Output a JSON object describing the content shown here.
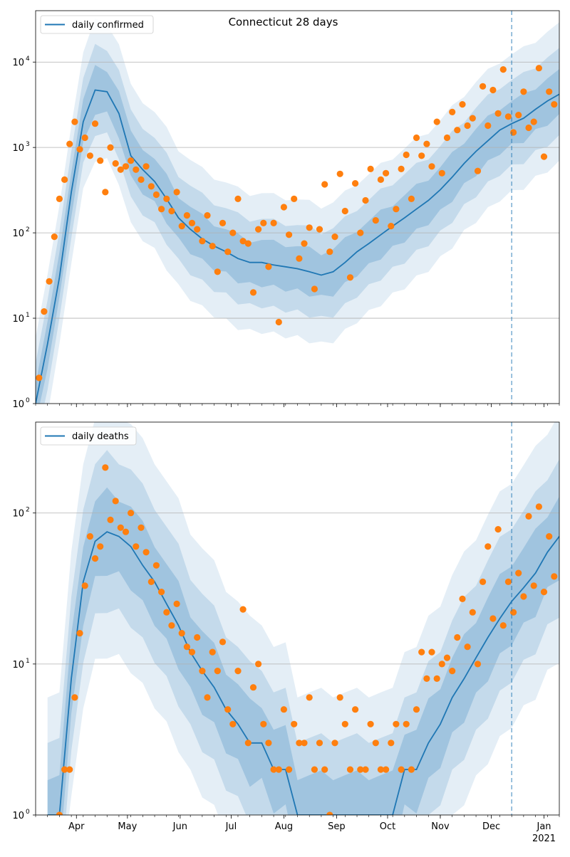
{
  "chart_data": [
    {
      "type": "line",
      "title": "Connecticut 28 days",
      "ylog": true,
      "ylim": [
        1,
        40000
      ],
      "yticks": [
        1,
        10,
        100,
        1000,
        10000
      ],
      "ytick_labels": [
        "10",
        "10",
        "10",
        "10",
        "10"
      ],
      "ytick_exponents": [
        "0",
        "1",
        "2",
        "3",
        "4"
      ],
      "grid": "y",
      "legend": "top-left",
      "vline_date": "2020-12-13",
      "series": [
        {
          "name": "daily confirmed",
          "color": "#1f77b4",
          "x": [
            "2020-03-08",
            "2020-03-15",
            "2020-03-22",
            "2020-03-29",
            "2020-04-05",
            "2020-04-12",
            "2020-04-19",
            "2020-04-26",
            "2020-05-03",
            "2020-05-10",
            "2020-05-17",
            "2020-05-24",
            "2020-05-31",
            "2020-06-07",
            "2020-06-14",
            "2020-06-21",
            "2020-06-28",
            "2020-07-05",
            "2020-07-12",
            "2020-07-19",
            "2020-07-26",
            "2020-08-02",
            "2020-08-09",
            "2020-08-16",
            "2020-08-23",
            "2020-08-30",
            "2020-09-06",
            "2020-09-13",
            "2020-09-20",
            "2020-09-27",
            "2020-10-04",
            "2020-10-11",
            "2020-10-18",
            "2020-10-25",
            "2020-11-01",
            "2020-11-08",
            "2020-11-15",
            "2020-11-22",
            "2020-11-29",
            "2020-12-06",
            "2020-12-13",
            "2020-12-20",
            "2020-12-27",
            "2021-01-03",
            "2021-01-10"
          ],
          "y": [
            1,
            5,
            30,
            300,
            2000,
            4700,
            4500,
            2500,
            800,
            550,
            400,
            250,
            150,
            110,
            85,
            70,
            60,
            50,
            45,
            45,
            42,
            40,
            38,
            35,
            32,
            35,
            45,
            60,
            75,
            95,
            120,
            150,
            190,
            240,
            320,
            450,
            650,
            900,
            1200,
            1600,
            1900,
            2200,
            2800,
            3500,
            4200
          ]
        }
      ],
      "points": {
        "color": "#ff7f0e",
        "x": [
          "2020-03-10",
          "2020-03-13",
          "2020-03-16",
          "2020-03-19",
          "2020-03-22",
          "2020-03-25",
          "2020-03-28",
          "2020-03-31",
          "2020-04-03",
          "2020-04-06",
          "2020-04-09",
          "2020-04-12",
          "2020-04-15",
          "2020-04-18",
          "2020-04-21",
          "2020-04-24",
          "2020-04-27",
          "2020-04-30",
          "2020-05-03",
          "2020-05-06",
          "2020-05-09",
          "2020-05-12",
          "2020-05-15",
          "2020-05-18",
          "2020-05-21",
          "2020-05-24",
          "2020-05-27",
          "2020-05-30",
          "2020-06-02",
          "2020-06-05",
          "2020-06-08",
          "2020-06-11",
          "2020-06-14",
          "2020-06-17",
          "2020-06-20",
          "2020-06-23",
          "2020-06-26",
          "2020-06-29",
          "2020-07-02",
          "2020-07-05",
          "2020-07-08",
          "2020-07-11",
          "2020-07-14",
          "2020-07-17",
          "2020-07-20",
          "2020-07-23",
          "2020-07-26",
          "2020-07-29",
          "2020-08-01",
          "2020-08-04",
          "2020-08-07",
          "2020-08-10",
          "2020-08-13",
          "2020-08-16",
          "2020-08-19",
          "2020-08-22",
          "2020-08-25",
          "2020-08-28",
          "2020-08-31",
          "2020-09-03",
          "2020-09-06",
          "2020-09-09",
          "2020-09-12",
          "2020-09-15",
          "2020-09-18",
          "2020-09-21",
          "2020-09-24",
          "2020-09-27",
          "2020-09-30",
          "2020-10-03",
          "2020-10-06",
          "2020-10-09",
          "2020-10-12",
          "2020-10-15",
          "2020-10-18",
          "2020-10-21",
          "2020-10-24",
          "2020-10-27",
          "2020-10-30",
          "2020-11-02",
          "2020-11-05",
          "2020-11-08",
          "2020-11-11",
          "2020-11-14",
          "2020-11-17",
          "2020-11-20",
          "2020-11-23",
          "2020-11-26",
          "2020-11-29",
          "2020-12-02",
          "2020-12-05",
          "2020-12-08",
          "2020-12-11",
          "2020-12-14",
          "2020-12-17",
          "2020-12-20",
          "2020-12-23",
          "2020-12-26",
          "2020-12-29",
          "2021-01-01",
          "2021-01-04",
          "2021-01-07"
        ],
        "y": [
          2,
          12,
          27,
          90,
          250,
          420,
          1100,
          2000,
          950,
          1300,
          800,
          1900,
          700,
          300,
          1000,
          650,
          550,
          600,
          700,
          550,
          420,
          600,
          350,
          280,
          190,
          250,
          180,
          300,
          120,
          160,
          130,
          110,
          80,
          160,
          70,
          35,
          130,
          60,
          100,
          250,
          80,
          75,
          20,
          110,
          130,
          40,
          130,
          9,
          200,
          95,
          250,
          50,
          75,
          115,
          22,
          110,
          370,
          60,
          90,
          490,
          180,
          30,
          380,
          100,
          240,
          560,
          140,
          420,
          500,
          120,
          190,
          560,
          820,
          250,
          1300,
          800,
          1100,
          600,
          2000,
          500,
          1300,
          2600,
          1600,
          3200,
          1800,
          2200,
          530,
          5200,
          1800,
          4700,
          2500,
          8200,
          2300,
          1500,
          2400,
          4500,
          1700,
          2000,
          8500,
          780,
          4500,
          3200
        ]
      }
    },
    {
      "type": "line",
      "title": "",
      "ylog": true,
      "ylim": [
        1,
        400
      ],
      "yticks": [
        1,
        10,
        100
      ],
      "ytick_labels": [
        "10",
        "10",
        "10"
      ],
      "ytick_exponents": [
        "0",
        "1",
        "2"
      ],
      "grid": "y",
      "legend": "top-left",
      "vline_date": "2020-12-13",
      "x_ticks": [
        "2020-04-01",
        "2020-05-01",
        "2020-06-01",
        "2020-07-01",
        "2020-08-01",
        "2020-09-01",
        "2020-10-01",
        "2020-11-01",
        "2020-12-01",
        "2021-01-01"
      ],
      "x_tick_labels": [
        "Apr",
        "May",
        "Jun",
        "Jul",
        "Aug",
        "Sep",
        "Oct",
        "Nov",
        "Dec",
        "Jan"
      ],
      "x_year_label": "2021",
      "series": [
        {
          "name": "daily deaths",
          "color": "#1f77b4",
          "x": [
            "2020-03-15",
            "2020-03-22",
            "2020-03-29",
            "2020-04-05",
            "2020-04-12",
            "2020-04-19",
            "2020-04-26",
            "2020-05-03",
            "2020-05-10",
            "2020-05-17",
            "2020-05-24",
            "2020-05-31",
            "2020-06-07",
            "2020-06-14",
            "2020-06-21",
            "2020-06-28",
            "2020-07-05",
            "2020-07-12",
            "2020-07-19",
            "2020-07-26",
            "2020-08-02",
            "2020-08-09",
            "2020-08-16",
            "2020-08-23",
            "2020-08-30",
            "2020-09-06",
            "2020-09-13",
            "2020-09-20",
            "2020-09-27",
            "2020-10-04",
            "2020-10-11",
            "2020-10-18",
            "2020-10-25",
            "2020-11-01",
            "2020-11-08",
            "2020-11-15",
            "2020-11-22",
            "2020-11-29",
            "2020-12-06",
            "2020-12-13",
            "2020-12-20",
            "2020-12-27",
            "2021-01-03",
            "2021-01-10"
          ],
          "y": [
            1,
            1,
            8,
            35,
            65,
            75,
            70,
            60,
            45,
            35,
            25,
            18,
            12,
            9,
            7,
            5,
            4,
            3,
            3,
            2,
            2,
            1,
            1,
            1,
            1,
            1,
            1,
            1,
            1,
            1,
            2,
            2,
            3,
            4,
            6,
            8,
            11,
            15,
            20,
            26,
            32,
            40,
            55,
            70
          ]
        }
      ],
      "points": {
        "color": "#ff7f0e",
        "x": [
          "2020-03-22",
          "2020-03-25",
          "2020-03-28",
          "2020-03-31",
          "2020-04-03",
          "2020-04-06",
          "2020-04-09",
          "2020-04-12",
          "2020-04-15",
          "2020-04-18",
          "2020-04-21",
          "2020-04-24",
          "2020-04-27",
          "2020-04-30",
          "2020-05-03",
          "2020-05-06",
          "2020-05-09",
          "2020-05-12",
          "2020-05-15",
          "2020-05-18",
          "2020-05-21",
          "2020-05-24",
          "2020-05-27",
          "2020-05-30",
          "2020-06-02",
          "2020-06-05",
          "2020-06-08",
          "2020-06-11",
          "2020-06-14",
          "2020-06-17",
          "2020-06-20",
          "2020-06-23",
          "2020-06-26",
          "2020-06-29",
          "2020-07-02",
          "2020-07-05",
          "2020-07-08",
          "2020-07-11",
          "2020-07-14",
          "2020-07-17",
          "2020-07-20",
          "2020-07-23",
          "2020-07-26",
          "2020-07-29",
          "2020-08-01",
          "2020-08-04",
          "2020-08-07",
          "2020-08-10",
          "2020-08-13",
          "2020-08-16",
          "2020-08-19",
          "2020-08-22",
          "2020-08-25",
          "2020-08-28",
          "2020-08-31",
          "2020-09-03",
          "2020-09-06",
          "2020-09-09",
          "2020-09-12",
          "2020-09-15",
          "2020-09-18",
          "2020-09-21",
          "2020-09-24",
          "2020-09-27",
          "2020-09-30",
          "2020-10-03",
          "2020-10-06",
          "2020-10-09",
          "2020-10-12",
          "2020-10-15",
          "2020-10-18",
          "2020-10-21",
          "2020-10-24",
          "2020-10-27",
          "2020-10-30",
          "2020-11-02",
          "2020-11-05",
          "2020-11-08",
          "2020-11-11",
          "2020-11-14",
          "2020-11-17",
          "2020-11-20",
          "2020-11-23",
          "2020-11-26",
          "2020-11-29",
          "2020-12-02",
          "2020-12-05",
          "2020-12-08",
          "2020-12-11",
          "2020-12-14",
          "2020-12-17",
          "2020-12-20",
          "2020-12-23",
          "2020-12-26",
          "2020-12-29",
          "2021-01-01",
          "2021-01-04",
          "2021-01-07"
        ],
        "y": [
          1,
          2,
          2,
          6,
          16,
          33,
          70,
          50,
          60,
          200,
          90,
          120,
          80,
          75,
          100,
          60,
          80,
          55,
          35,
          45,
          30,
          22,
          18,
          25,
          16,
          13,
          12,
          15,
          9,
          6,
          12,
          9,
          14,
          5,
          4,
          9,
          23,
          3,
          7,
          10,
          4,
          3,
          2,
          2,
          5,
          2,
          4,
          3,
          3,
          6,
          2,
          3,
          2,
          1,
          3,
          6,
          4,
          2,
          5,
          2,
          2,
          4,
          3,
          2,
          2,
          3,
          4,
          2,
          4,
          2,
          5,
          12,
          8,
          12,
          8,
          10,
          11,
          9,
          15,
          27,
          13,
          22,
          10,
          35,
          60,
          20,
          78,
          18,
          35,
          22,
          40,
          28,
          95,
          33,
          110,
          30,
          70,
          38
        ]
      }
    }
  ]
}
